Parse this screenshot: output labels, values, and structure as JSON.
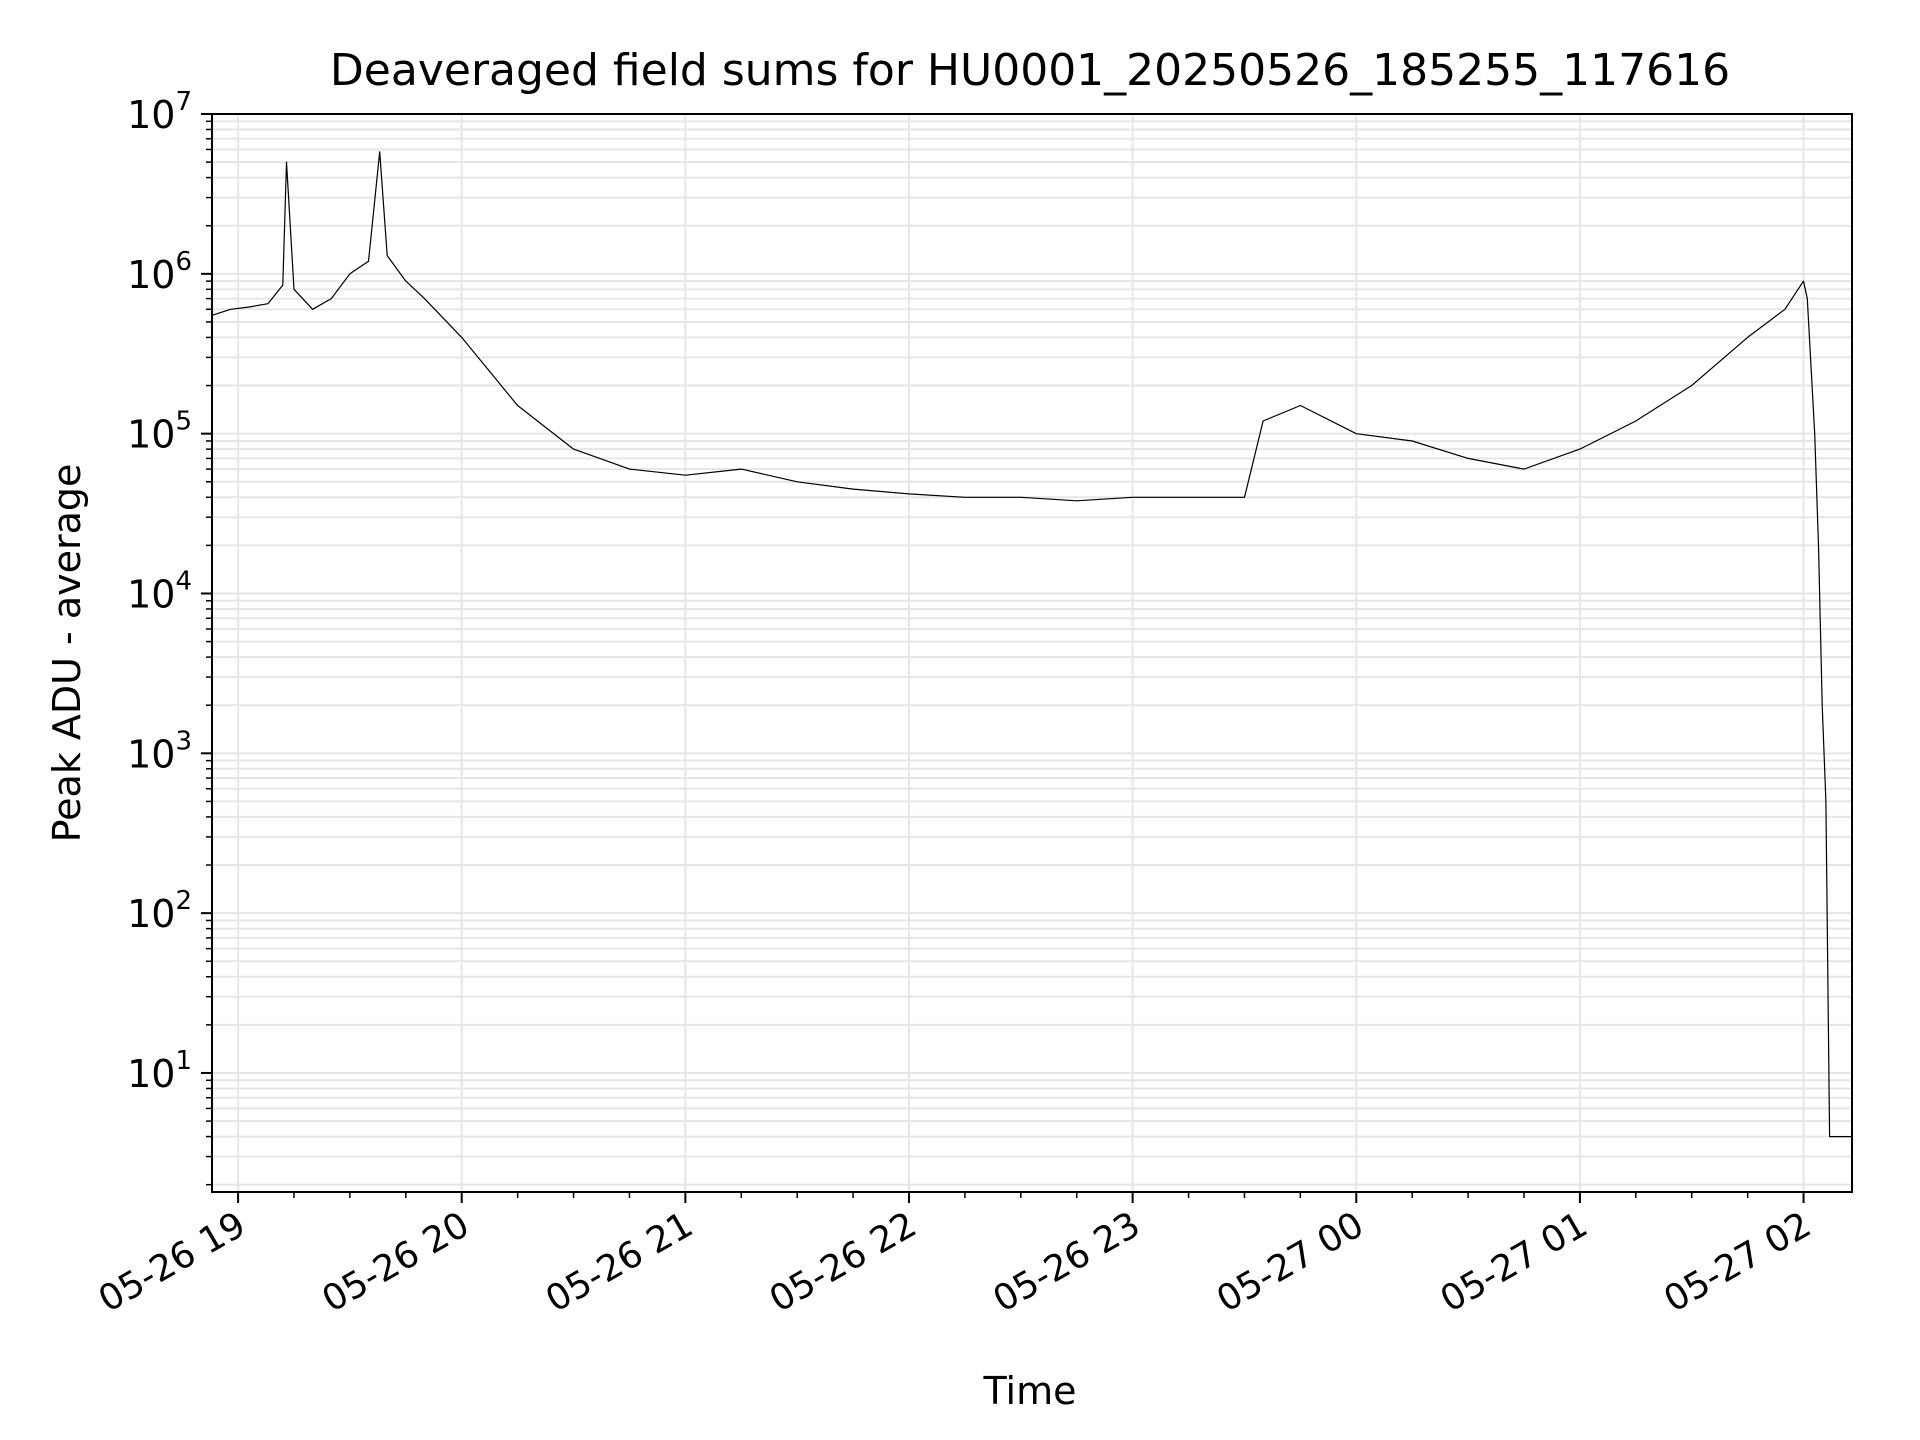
{
  "chart_data": {
    "type": "line",
    "title": "Deaveraged field sums for HU0001_20250526_185255_117616",
    "xlabel": "Time",
    "ylabel": "Peak ADU - average",
    "yscale": "log",
    "ylim": [
      1.8,
      10000000
    ],
    "xlim": [
      "2025-05-26 18:53",
      "2025-05-27 02:13"
    ],
    "x_ticks": [
      {
        "t": "2025-05-26 19:00",
        "label": "05-26 19"
      },
      {
        "t": "2025-05-26 20:00",
        "label": "05-26 20"
      },
      {
        "t": "2025-05-26 21:00",
        "label": "05-26 21"
      },
      {
        "t": "2025-05-26 22:00",
        "label": "05-26 22"
      },
      {
        "t": "2025-05-26 23:00",
        "label": "05-26 23"
      },
      {
        "t": "2025-05-27 00:00",
        "label": "05-27 00"
      },
      {
        "t": "2025-05-27 01:00",
        "label": "05-27 01"
      },
      {
        "t": "2025-05-27 02:00",
        "label": "05-27 02"
      }
    ],
    "y_ticks": [
      {
        "value": 10,
        "base": "10",
        "exp": "1"
      },
      {
        "value": 100,
        "base": "10",
        "exp": "2"
      },
      {
        "value": 1000,
        "base": "10",
        "exp": "3"
      },
      {
        "value": 10000,
        "base": "10",
        "exp": "4"
      },
      {
        "value": 100000,
        "base": "10",
        "exp": "5"
      },
      {
        "value": 1000000,
        "base": "10",
        "exp": "6"
      },
      {
        "value": 10000000,
        "base": "10",
        "exp": "7"
      }
    ],
    "grid": true,
    "grid_minor": true,
    "line_color": "#000000",
    "grid_color": "#e6e6e6",
    "series": [
      {
        "x": [
          "2025-05-26 18:53",
          "2025-05-26 18:58",
          "2025-05-26 19:03",
          "2025-05-26 19:08",
          "2025-05-26 19:12",
          "2025-05-26 19:13",
          "2025-05-26 19:15",
          "2025-05-26 19:20",
          "2025-05-26 19:25",
          "2025-05-26 19:30",
          "2025-05-26 19:35",
          "2025-05-26 19:38",
          "2025-05-26 19:40",
          "2025-05-26 19:45",
          "2025-05-26 19:50",
          "2025-05-26 20:00",
          "2025-05-26 20:15",
          "2025-05-26 20:30",
          "2025-05-26 20:45",
          "2025-05-26 21:00",
          "2025-05-26 21:15",
          "2025-05-26 21:30",
          "2025-05-26 21:45",
          "2025-05-26 22:00",
          "2025-05-26 22:15",
          "2025-05-26 22:30",
          "2025-05-26 22:45",
          "2025-05-26 23:00",
          "2025-05-26 23:15",
          "2025-05-26 23:30",
          "2025-05-26 23:35",
          "2025-05-26 23:45",
          "2025-05-27 00:00",
          "2025-05-27 00:15",
          "2025-05-27 00:30",
          "2025-05-27 00:45",
          "2025-05-27 01:00",
          "2025-05-27 01:15",
          "2025-05-27 01:30",
          "2025-05-27 01:45",
          "2025-05-27 01:55",
          "2025-05-27 02:00",
          "2025-05-27 02:01",
          "2025-05-27 02:03",
          "2025-05-27 02:04",
          "2025-05-27 02:05",
          "2025-05-27 02:06",
          "2025-05-27 02:07",
          "2025-05-27 02:13"
        ],
        "y": [
          550000,
          600000,
          620000,
          650000,
          850000,
          5000000,
          800000,
          600000,
          700000,
          1000000,
          1200000,
          5800000,
          1300000,
          900000,
          700000,
          400000,
          150000,
          80000,
          60000,
          55000,
          60000,
          50000,
          45000,
          42000,
          40000,
          40000,
          38000,
          40000,
          40000,
          40000,
          120000,
          150000,
          100000,
          90000,
          70000,
          60000,
          80000,
          120000,
          200000,
          400000,
          600000,
          900000,
          700000,
          100000,
          20000,
          2000,
          500,
          4,
          4
        ]
      }
    ]
  }
}
